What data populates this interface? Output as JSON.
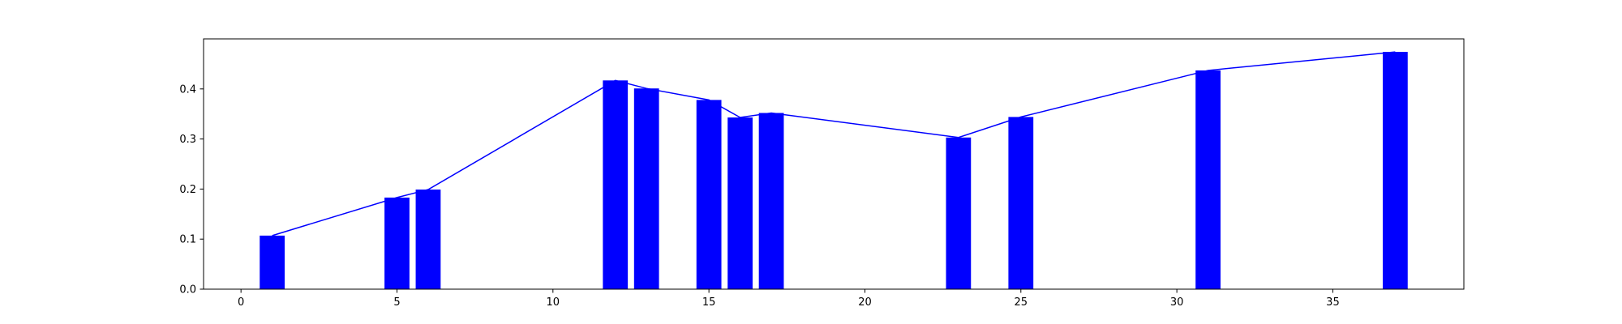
{
  "chart_data": {
    "type": "bar",
    "title": "",
    "xlabel": "",
    "ylabel": "",
    "xlim": [
      -1.2,
      39.2
    ],
    "ylim": [
      0,
      0.5
    ],
    "grid": false,
    "bar_width": 0.8,
    "bar_color": "#0000ff",
    "line_color": "#0000ff",
    "x": [
      1,
      5,
      6,
      12,
      13,
      15,
      16,
      17,
      23,
      25,
      31,
      37
    ],
    "values": [
      0.107,
      0.183,
      0.199,
      0.417,
      0.401,
      0.378,
      0.343,
      0.352,
      0.303,
      0.344,
      0.437,
      0.474
    ],
    "overlay_line": {
      "type": "line",
      "x": [
        1,
        5,
        6,
        12,
        13,
        15,
        16,
        17,
        23,
        25,
        31,
        37
      ],
      "values": [
        0.107,
        0.183,
        0.199,
        0.417,
        0.401,
        0.378,
        0.343,
        0.352,
        0.303,
        0.344,
        0.437,
        0.474
      ]
    },
    "x_ticks": [
      0,
      5,
      10,
      15,
      20,
      25,
      30,
      35
    ],
    "x_tick_labels": [
      "0",
      "5",
      "10",
      "15",
      "20",
      "25",
      "30",
      "35"
    ],
    "y_ticks": [
      0.0,
      0.1,
      0.2,
      0.3,
      0.4
    ],
    "y_tick_labels": [
      "0.0",
      "0.1",
      "0.2",
      "0.3",
      "0.4"
    ]
  }
}
